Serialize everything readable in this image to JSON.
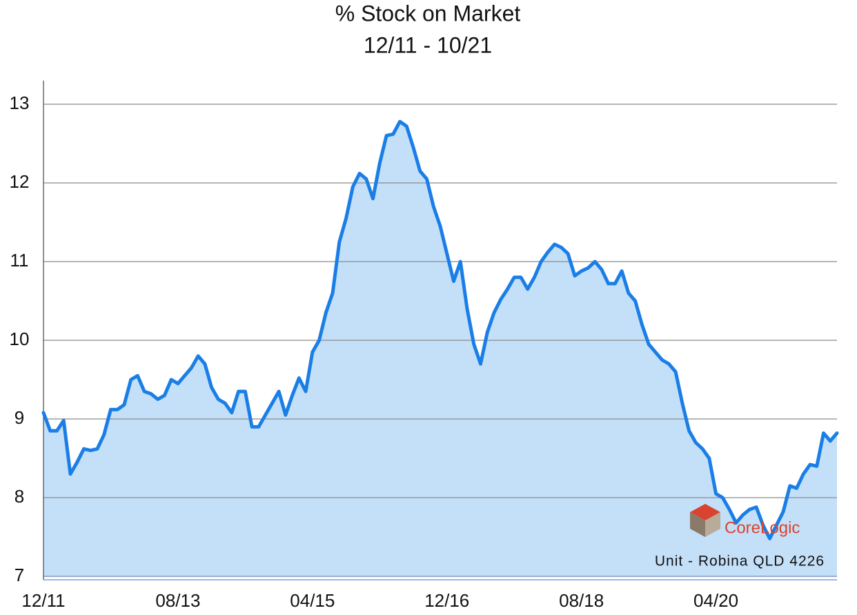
{
  "chart_data": {
    "type": "area",
    "title": "% Stock on Market",
    "subtitle": "12/11 - 10/21",
    "annotation": "Unit - Robina QLD 4226",
    "logo": "CoreLogic",
    "color": "#1a7ee6",
    "fill_color": "#c4e0f8",
    "grid": true,
    "ylim": [
      7,
      13.3
    ],
    "yticks": [
      7,
      8,
      9,
      10,
      11,
      12,
      13
    ],
    "categories": [
      "12/11",
      null,
      null,
      null,
      null,
      null,
      null,
      null,
      null,
      null,
      null,
      null,
      null,
      null,
      null,
      null,
      null,
      null,
      null,
      null,
      "08/13",
      null,
      null,
      null,
      null,
      null,
      null,
      null,
      null,
      null,
      null,
      null,
      null,
      null,
      null,
      null,
      null,
      null,
      null,
      null,
      "04/15",
      null,
      null,
      null,
      null,
      null,
      null,
      null,
      null,
      null,
      null,
      null,
      null,
      null,
      null,
      null,
      null,
      null,
      null,
      null,
      "12/16",
      null,
      null,
      null,
      null,
      null,
      null,
      null,
      null,
      null,
      null,
      null,
      null,
      null,
      null,
      null,
      null,
      null,
      null,
      null,
      "08/18",
      null,
      null,
      null,
      null,
      null,
      null,
      null,
      null,
      null,
      null,
      null,
      null,
      null,
      null,
      null,
      null,
      null,
      null,
      null,
      "04/20",
      null,
      null,
      null,
      null,
      null,
      null,
      null,
      null,
      null,
      null,
      null,
      null,
      null,
      null,
      null,
      null,
      null,
      null
    ],
    "values": [
      9.08,
      8.85,
      8.85,
      8.98,
      8.3,
      8.45,
      8.62,
      8.6,
      8.62,
      8.8,
      9.12,
      9.12,
      9.18,
      9.5,
      9.55,
      9.35,
      9.32,
      9.25,
      9.3,
      9.5,
      9.45,
      9.55,
      9.65,
      9.8,
      9.7,
      9.4,
      9.25,
      9.2,
      9.08,
      9.35,
      9.35,
      8.9,
      8.9,
      9.05,
      9.2,
      9.35,
      9.05,
      9.3,
      9.52,
      9.35,
      9.85,
      10.0,
      10.35,
      10.6,
      11.25,
      11.55,
      11.95,
      12.12,
      12.05,
      11.8,
      12.25,
      12.6,
      12.62,
      12.78,
      12.72,
      12.45,
      12.15,
      12.05,
      11.7,
      11.45,
      11.1,
      10.75,
      11.0,
      10.4,
      9.95,
      9.7,
      10.1,
      10.35,
      10.52,
      10.65,
      10.8,
      10.8,
      10.65,
      10.8,
      11.0,
      11.12,
      11.22,
      11.18,
      11.1,
      10.82,
      10.88,
      10.92,
      11.0,
      10.9,
      10.72,
      10.72,
      10.88,
      10.6,
      10.5,
      10.2,
      9.95,
      9.85,
      9.75,
      9.7,
      9.6,
      9.2,
      8.85,
      8.7,
      8.62,
      8.5,
      8.05,
      8.0,
      7.85,
      7.68,
      7.78,
      7.85,
      7.88,
      7.65,
      7.48,
      7.65,
      7.82,
      8.15,
      8.12,
      8.3,
      8.42,
      8.4,
      8.82,
      8.72,
      8.82
    ]
  }
}
